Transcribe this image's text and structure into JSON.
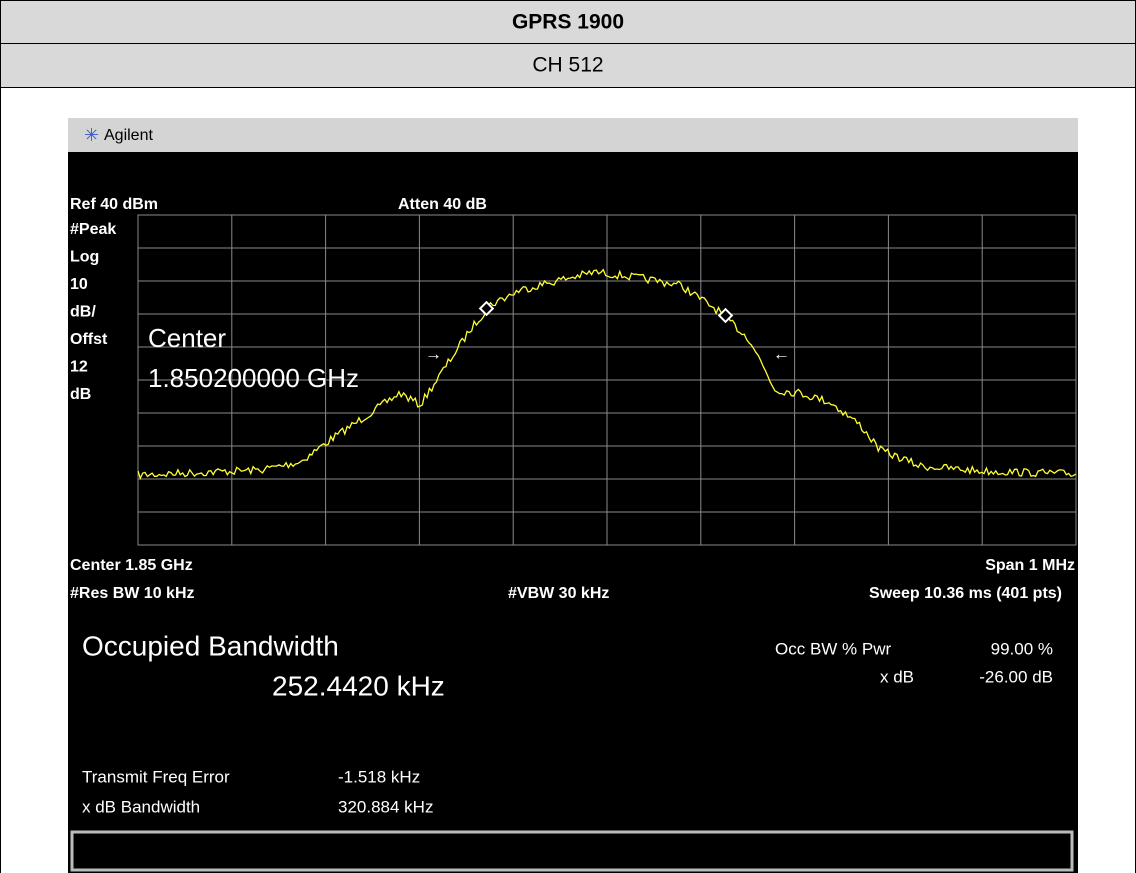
{
  "header": {
    "title": "GPRS 1900",
    "subtitle": "CH 512"
  },
  "analyzer": {
    "brand": "Agilent",
    "ref": "Ref 40 dBm",
    "atten": "Atten 40 dB",
    "left_labels": [
      "#Peak",
      "Log",
      "10",
      "dB/",
      "Offst",
      "12",
      "dB"
    ],
    "marker_label": [
      "Center",
      "1.850200000 GHz"
    ],
    "center": "Center 1.85 GHz",
    "span": "Span 1 MHz",
    "res_bw": "#Res BW 10 kHz",
    "vbw": "#VBW 30 kHz",
    "sweep": "Sweep 10.36 ms (401 pts)",
    "occ_title": "Occupied Bandwidth",
    "occ_value": "252.4420 kHz",
    "occ_pwr_label": "Occ BW % Pwr",
    "occ_pwr_value": "99.00 %",
    "xdb_label": "x dB",
    "xdb_value": "-26.00 dB",
    "tx_err_label": "Transmit Freq Error",
    "tx_err_value": "-1.518 kHz",
    "xdb_bw_label": "x dB Bandwidth",
    "xdb_bw_value": "320.884 kHz"
  }
}
